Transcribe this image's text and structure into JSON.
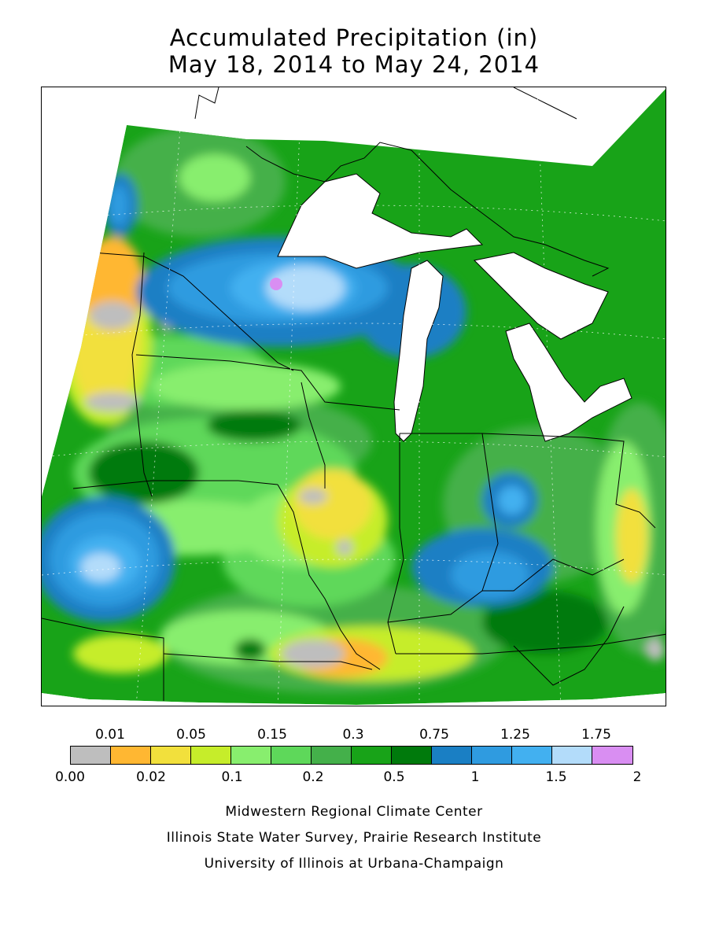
{
  "title": {
    "line1": "Accumulated Precipitation (in)",
    "line2": "May 18, 2014 to May 24, 2014"
  },
  "legend": {
    "top_labels": [
      "0.01",
      "0.05",
      "0.15",
      "0.3",
      "0.75",
      "1.25",
      "1.75"
    ],
    "bottom_labels": [
      "0.00",
      "0.02",
      "0.1",
      "0.2",
      "0.5",
      "1",
      "1.5",
      "2"
    ],
    "colors": [
      "#bebebe",
      "#ffb732",
      "#f2e03c",
      "#c6ed2a",
      "#88ee6e",
      "#5ed85a",
      "#44b04a",
      "#18a318",
      "#007a0c",
      "#1a7fc4",
      "#2f9be0",
      "#42b0f0",
      "#b3dcfa",
      "#d98ef2"
    ]
  },
  "credits": {
    "line1": "Midwestern Regional Climate Center",
    "line2": "Illinois State Water Survey, Prairie Research Institute",
    "line3": "University of Illinois at Urbana-Champaign"
  },
  "map": {
    "ocean_color": "#ffffff",
    "background_level_color": "#18a318"
  }
}
